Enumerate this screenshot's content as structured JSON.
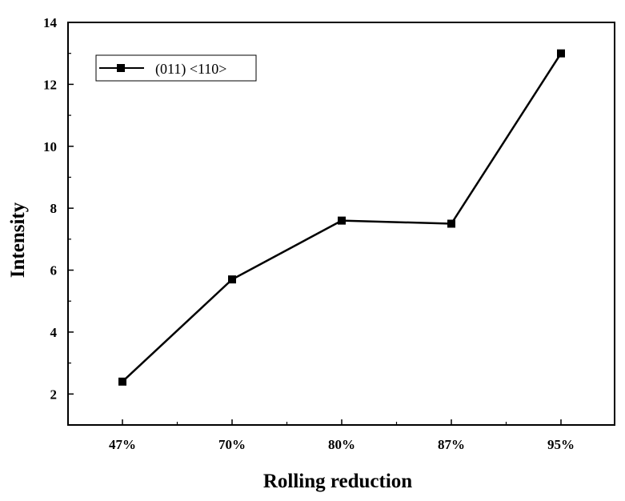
{
  "chart_data": {
    "type": "line",
    "title": "",
    "xlabel": "Rolling reduction",
    "ylabel": "Intensity",
    "categories": [
      "47%",
      "70%",
      "80%",
      "87%",
      "95%"
    ],
    "series": [
      {
        "name": "(011) <110>",
        "values": [
          2.4,
          5.7,
          7.6,
          7.5,
          13.0
        ],
        "marker": "square",
        "color": "#000000"
      }
    ],
    "ylim": [
      1,
      14
    ],
    "yticks": [
      2,
      4,
      6,
      8,
      10,
      12,
      14
    ],
    "grid": false,
    "legend_position": "top-left"
  }
}
